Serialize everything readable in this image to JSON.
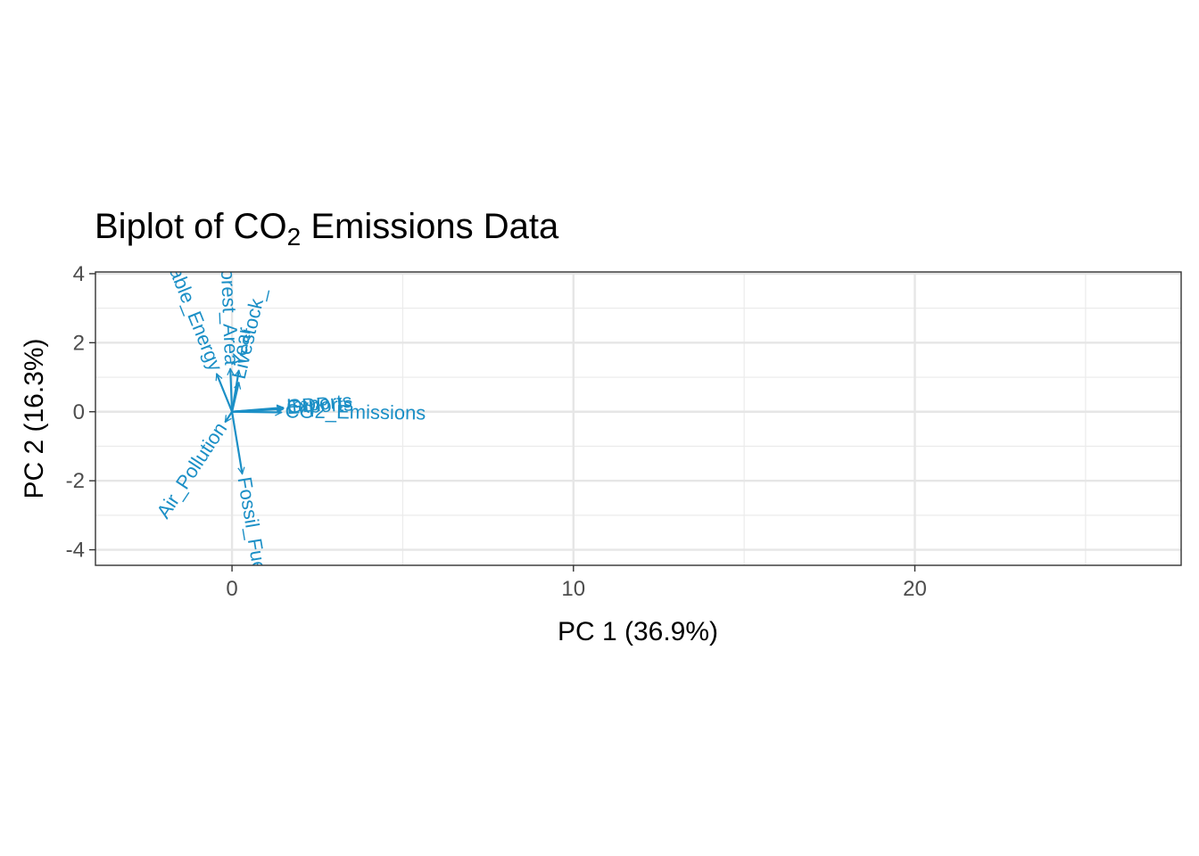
{
  "chart_data": {
    "type": "scatter",
    "subtype": "pca-biplot",
    "title": {
      "prefix": "Biplot of CO",
      "subscript": "2",
      "suffix": " Emissions Data"
    },
    "xlabel": "PC 1 (36.9%)",
    "ylabel": "PC 2 (16.3%)",
    "xlim": [
      -4.0,
      27.8
    ],
    "ylim": [
      -4.45,
      4.05
    ],
    "x_ticks": [
      0,
      10,
      20
    ],
    "x_tick_labels": [
      "0",
      "10",
      "20"
    ],
    "y_ticks": [
      -4,
      -2,
      0,
      2,
      4
    ],
    "y_tick_labels": [
      "-4",
      "-2",
      "0",
      "2",
      "4"
    ],
    "x_minor_ticks": [
      -5,
      5,
      15,
      25
    ],
    "y_minor_ticks": [
      -3,
      -1,
      1,
      3
    ],
    "grid": true,
    "theme": "bw",
    "arrow_color": "#1b8fc6",
    "loadings": [
      {
        "name": "Renewable_Energy",
        "label": "Renewable_Energy",
        "x": -0.45,
        "y": 1.1
      },
      {
        "name": "Forest_Area",
        "label": "Forest_Area",
        "x": -0.05,
        "y": 1.25
      },
      {
        "name": "Year",
        "label": "Year",
        "x": 0.2,
        "y": 1.2
      },
      {
        "name": "Livestock_",
        "label": "Livestock_",
        "x": 0.2,
        "y": 0.85
      },
      {
        "name": "GDP",
        "label": "GDP",
        "x": 1.5,
        "y": 0.1
      },
      {
        "name": "Imports",
        "label": "Imports",
        "x": 1.5,
        "y": 0.12
      },
      {
        "name": "Exports",
        "label": "Exports",
        "x": 1.5,
        "y": 0.08
      },
      {
        "name": "CO2_Emissions",
        "label": "CO2_Emissions",
        "x": 1.45,
        "y": -0.02
      },
      {
        "name": "Air_Pollution",
        "label": "Air_Pollution",
        "x": -0.2,
        "y": -0.3
      },
      {
        "name": "Fossil_Fuel",
        "label": "Fossil_Fuel",
        "x": 0.3,
        "y": -1.8
      }
    ]
  }
}
